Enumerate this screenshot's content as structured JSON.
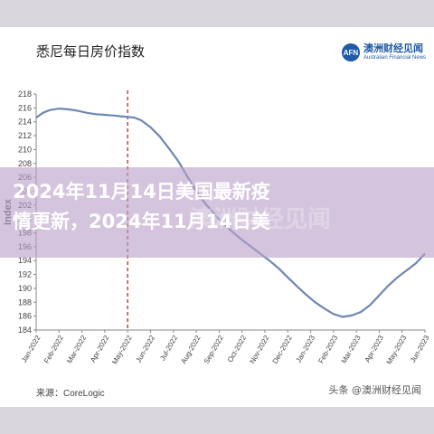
{
  "header": {
    "chart_title": "悉尼每日房价指数",
    "brand_logo": "AFN",
    "brand_cn": "澳洲财经见闻",
    "brand_en": "Australian Financial News"
  },
  "source": "来源：CoreLogic",
  "footer_watermark": "头条 @澳洲财经见闻",
  "headline": {
    "line1": "2024年11月14日美国最新疫",
    "line2": "情更新，2024年11月14日美"
  },
  "colors": {
    "line": "#6f86b5",
    "reference_line": "#c0392b",
    "overlay": "#b9a0c8"
  },
  "chart_data": {
    "type": "line",
    "title": "悉尼每日房价指数",
    "ylabel": "Index",
    "xlabel": "",
    "ylim": [
      184,
      218
    ],
    "yticks": [
      184,
      186,
      188,
      190,
      192,
      194,
      196,
      198,
      200,
      202,
      204,
      206,
      208,
      210,
      212,
      214,
      216,
      218
    ],
    "x_tick_labels": [
      "Jan-2022",
      "Feb-2022",
      "Mar-2022",
      "Apr-2022",
      "May-2022",
      "Jun-2022",
      "Jul-2022",
      "Aug-2022",
      "Sep-2022",
      "Oct-2022",
      "Nov-2022",
      "Dec-2022",
      "Jan-2023",
      "Feb-2023",
      "Mar-2023",
      "Apr-2023",
      "May-2023",
      "Jun-2023"
    ],
    "grid": false,
    "reference_line_x": 4.0,
    "x": [
      0,
      0.3,
      0.6,
      1.0,
      1.4,
      1.8,
      2.2,
      2.6,
      3.0,
      3.4,
      3.7,
      4.0,
      4.3,
      4.6,
      5.0,
      5.4,
      5.8,
      6.2,
      6.6,
      7.0,
      7.4,
      7.8,
      8.2,
      8.6,
      9.0,
      9.4,
      9.8,
      10.2,
      10.6,
      11.0,
      11.4,
      11.8,
      12.2,
      12.6,
      13.0,
      13.4,
      13.8,
      14.2,
      14.6,
      15.0,
      15.4,
      15.8,
      16.2,
      16.6,
      17.0
    ],
    "values": [
      214.6,
      215.3,
      215.7,
      215.9,
      215.8,
      215.6,
      215.3,
      215.1,
      215.0,
      214.9,
      214.8,
      214.7,
      214.6,
      214.2,
      213.2,
      211.9,
      210.2,
      208.4,
      206.2,
      204.0,
      202.2,
      200.7,
      199.3,
      198.1,
      197.0,
      196.0,
      195.0,
      194.0,
      192.9,
      191.6,
      190.3,
      189.1,
      188.0,
      187.1,
      186.3,
      185.9,
      186.1,
      186.6,
      187.6,
      189.0,
      190.4,
      191.6,
      192.6,
      193.6,
      195.0
    ]
  }
}
